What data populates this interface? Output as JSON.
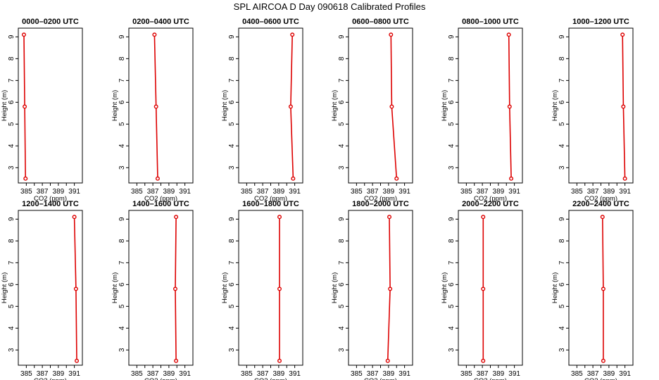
{
  "title": "SPL AIRCOA D  Day 090618  Calibrated Profiles",
  "chart_data": {
    "type": "line",
    "title": "SPL AIRCOA D  Day 090618  Calibrated Profiles",
    "xlabel": "CO2 (ppm)",
    "ylabel": "Height (m)",
    "xlim": [
      384,
      392
    ],
    "ylim": [
      2.3,
      9.4
    ],
    "xticks": [
      385,
      386,
      387,
      388,
      389,
      390,
      391
    ],
    "xtick_labels": [
      "385",
      "387",
      "389",
      "391"
    ],
    "yticks": [
      3,
      4,
      5,
      6,
      7,
      8,
      9
    ],
    "heights": [
      9.1,
      5.8,
      2.5
    ],
    "color": "#dd0000",
    "panels": [
      {
        "title": "0000–0200 UTC",
        "co2": [
          384.7,
          384.8,
          384.9
        ]
      },
      {
        "title": "0200–0400 UTC",
        "co2": [
          387.2,
          387.4,
          387.6
        ]
      },
      {
        "title": "0400–0600 UTC",
        "co2": [
          390.7,
          390.5,
          390.8
        ]
      },
      {
        "title": "0600–0800 UTC",
        "co2": [
          389.3,
          389.4,
          390.0
        ]
      },
      {
        "title": "0800–1000 UTC",
        "co2": [
          390.3,
          390.4,
          390.6
        ]
      },
      {
        "title": "1000–1200 UTC",
        "co2": [
          390.7,
          390.8,
          391.0
        ]
      },
      {
        "title": "1200–1400 UTC",
        "co2": [
          391.0,
          391.2,
          391.3
        ]
      },
      {
        "title": "1400–1600 UTC",
        "co2": [
          389.9,
          389.8,
          389.9
        ]
      },
      {
        "title": "1600–1800 UTC",
        "co2": [
          389.1,
          389.1,
          389.1
        ]
      },
      {
        "title": "1800–2000 UTC",
        "co2": [
          389.1,
          389.2,
          388.9
        ]
      },
      {
        "title": "2000–2200 UTC",
        "co2": [
          387.1,
          387.1,
          387.1
        ]
      },
      {
        "title": "2200–2400 UTC",
        "co2": [
          388.2,
          388.3,
          388.3
        ]
      }
    ]
  }
}
